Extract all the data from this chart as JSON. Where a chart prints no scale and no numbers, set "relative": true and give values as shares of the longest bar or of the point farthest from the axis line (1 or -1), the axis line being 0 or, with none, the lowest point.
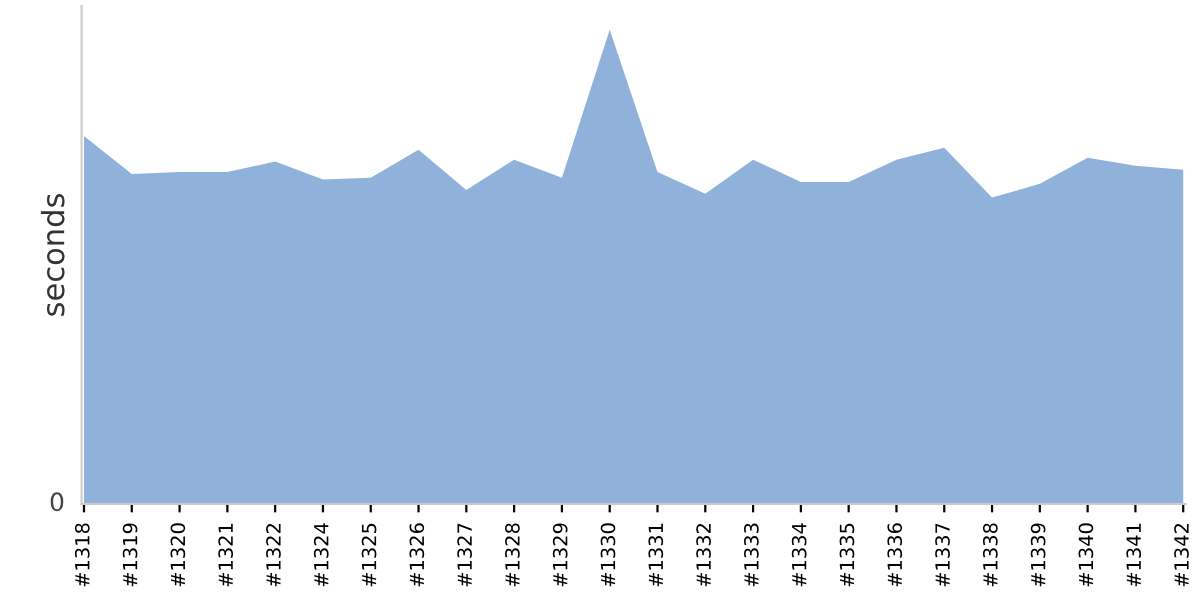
{
  "chart_data": {
    "type": "area",
    "ylabel": "seconds",
    "relative": true,
    "annotations": [
      "0"
    ],
    "color": "#8fb1da",
    "grid": false,
    "legend": false,
    "categories": [
      "#1318",
      "#1319",
      "#1320",
      "#1321",
      "#1322",
      "#1324",
      "#1325",
      "#1326",
      "#1327",
      "#1328",
      "#1329",
      "#1330",
      "#1331",
      "#1332",
      "#1333",
      "#1334",
      "#1335",
      "#1336",
      "#1337",
      "#1338",
      "#1339",
      "#1340",
      "#1341",
      "#1342"
    ],
    "values": [
      0.776,
      0.696,
      0.7,
      0.7,
      0.722,
      0.684,
      0.688,
      0.747,
      0.662,
      0.726,
      0.688,
      1,
      0.7,
      0.654,
      0.726,
      0.679,
      0.679,
      0.726,
      0.751,
      0.646,
      0.675,
      0.73,
      0.713,
      0.705
    ]
  }
}
